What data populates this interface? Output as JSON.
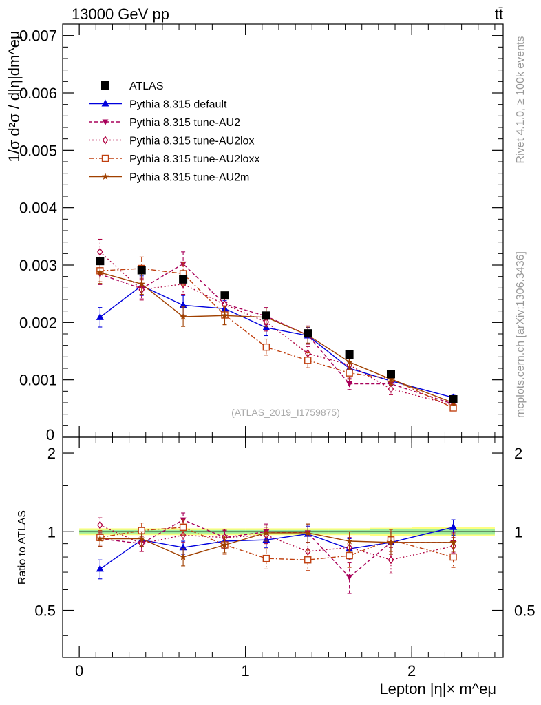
{
  "header": {
    "energy_label": "13000 GeV pp",
    "process_label": "tt̄"
  },
  "side_text": {
    "rivet_label": "Rivet 4.1.0, ≥ 100k events",
    "mcplots_label": "mcplots.cern.ch [arXiv:1306.3436]"
  },
  "analysis_label": "(ATLAS_2019_I1759875)",
  "chart_data": [
    {
      "type": "line",
      "panel": "main",
      "ylabel": "1/σ  d²σ / d|η|dm^eμ",
      "xlim": [
        -0.1,
        2.55
      ],
      "ylim": [
        0,
        0.0072
      ],
      "yticks": [
        "0.001",
        "0.002",
        "0.003",
        "0.004",
        "0.005",
        "0.006",
        "0.007"
      ],
      "ytick_values": [
        0.001,
        0.002,
        0.003,
        0.004,
        0.005,
        0.006,
        0.007
      ],
      "ytick_zero_label": "0",
      "x": [
        0.125,
        0.375,
        0.625,
        0.875,
        1.125,
        1.375,
        1.625,
        1.875,
        2.25
      ],
      "xerr": [
        0.125,
        0.125,
        0.125,
        0.125,
        0.125,
        0.125,
        0.125,
        0.125,
        0.25
      ],
      "legend_position": "top-left",
      "series": [
        {
          "name": "ATLAS",
          "color": "#000000",
          "marker": "square",
          "dash": "",
          "connect": false,
          "values": [
            0.00307,
            0.00291,
            0.00275,
            0.00247,
            0.00212,
            0.00181,
            0.00144,
            0.0011,
            0.00066
          ],
          "errors": [
            4e-05,
            4e-05,
            4e-05,
            3e-05,
            3e-05,
            3e-05,
            2e-05,
            2e-05,
            2e-05
          ]
        },
        {
          "name": "Pythia 8.315 default",
          "color": "#0000dd",
          "marker": "triangle-up",
          "dash": "",
          "connect": true,
          "values": [
            0.00209,
            0.00264,
            0.0023,
            0.00224,
            0.00191,
            0.00177,
            0.0012,
            0.00098,
            0.00069
          ],
          "errors": [
            0.00017,
            0.00017,
            0.00017,
            0.00014,
            0.00014,
            0.00014,
            0.00011,
            8e-05,
            4e-05
          ]
        },
        {
          "name": "Pythia 8.315 tune-AU2",
          "color": "#a8005a",
          "marker": "triangle-down",
          "dash": "5,3",
          "connect": true,
          "values": [
            0.00284,
            0.00259,
            0.00302,
            0.00232,
            0.00211,
            0.00178,
            0.00093,
            0.00093,
            0.00058
          ],
          "errors": [
            0.00018,
            0.00018,
            0.00021,
            0.00015,
            0.00015,
            0.00016,
            0.0001,
            0.0001,
            5e-05
          ]
        },
        {
          "name": "Pythia 8.315 tune-AU2lox",
          "color": "#b00040",
          "marker": "diamond",
          "dash": "2,3",
          "connect": true,
          "values": [
            0.00323,
            0.00257,
            0.00267,
            0.00231,
            0.00201,
            0.00146,
            0.00126,
            0.00084,
            0.00056
          ],
          "errors": [
            0.00022,
            0.00018,
            0.00018,
            0.00016,
            0.00016,
            0.00012,
            0.00012,
            0.0001,
            4e-05
          ]
        },
        {
          "name": "Pythia 8.315 tune-AU2loxx",
          "color": "#c04010",
          "marker": "square-open",
          "dash": "7,3,2,3",
          "connect": true,
          "values": [
            0.0029,
            0.00294,
            0.00285,
            0.00213,
            0.00157,
            0.00134,
            0.00112,
            0.00102,
            0.00051
          ],
          "errors": [
            0.00019,
            0.0002,
            0.0002,
            0.00016,
            0.00014,
            0.00013,
            0.00011,
            0.0001,
            4e-05
          ]
        },
        {
          "name": "Pythia 8.315 tune-AU2m",
          "color": "#a04000",
          "marker": "star",
          "dash": "",
          "connect": true,
          "values": [
            0.00287,
            0.00267,
            0.0021,
            0.00212,
            0.00209,
            0.00178,
            0.00131,
            0.00101,
            0.0006
          ],
          "errors": [
            0.00019,
            0.00018,
            0.00017,
            0.00016,
            0.00016,
            0.00014,
            0.00012,
            0.0001,
            5e-05
          ]
        }
      ]
    },
    {
      "type": "line",
      "panel": "ratio",
      "ylabel": "Ratio to ATLAS",
      "xlabel": "Lepton |η|× m^eμ",
      "xlim": [
        -0.1,
        2.55
      ],
      "ylim": [
        0.33,
        2.3
      ],
      "yticks": [
        "0.5",
        "1",
        "2"
      ],
      "ytick_values": [
        0.5,
        1,
        2
      ],
      "xticks": [
        "0",
        "1",
        "2"
      ],
      "xtick_values": [
        0,
        1,
        2
      ],
      "band_color": "#fcff80",
      "band_inner_color": "#9eed9e",
      "band_outer_halfwidth": [
        0.03,
        0.03,
        0.03,
        0.03,
        0.03,
        0.03,
        0.03,
        0.035,
        0.04
      ],
      "band_inner_halfwidth": [
        0.015,
        0.015,
        0.015,
        0.015,
        0.015,
        0.015,
        0.015,
        0.02,
        0.025
      ],
      "series": [
        {
          "name": "Pythia 8.315 default",
          "values": [
            0.72,
            0.93,
            0.87,
            0.92,
            0.93,
            0.98,
            0.86,
            0.91,
            1.04
          ],
          "errors": [
            0.06,
            0.05,
            0.05,
            0.06,
            0.06,
            0.07,
            0.08,
            0.09,
            0.07
          ]
        },
        {
          "name": "Pythia 8.315 tune-AU2",
          "values": [
            0.94,
            0.9,
            1.11,
            0.95,
            1.0,
            0.99,
            0.67,
            0.91,
            0.91
          ],
          "errors": [
            0.06,
            0.06,
            0.07,
            0.06,
            0.07,
            0.08,
            0.09,
            0.09,
            0.08
          ]
        },
        {
          "name": "Pythia 8.315 tune-AU2lox",
          "values": [
            1.06,
            0.9,
            0.97,
            0.95,
            0.97,
            0.84,
            0.87,
            0.78,
            0.88
          ],
          "errors": [
            0.07,
            0.06,
            0.06,
            0.07,
            0.07,
            0.07,
            0.08,
            0.09,
            0.07
          ]
        },
        {
          "name": "Pythia 8.315 tune-AU2loxx",
          "values": [
            0.95,
            1.01,
            1.04,
            0.89,
            0.79,
            0.78,
            0.81,
            0.93,
            0.8
          ],
          "errors": [
            0.06,
            0.07,
            0.07,
            0.07,
            0.07,
            0.07,
            0.08,
            0.09,
            0.07
          ]
        },
        {
          "name": "Pythia 8.315 tune-AU2m",
          "values": [
            0.94,
            0.94,
            0.8,
            0.89,
            0.99,
            0.99,
            0.92,
            0.91,
            0.91
          ],
          "errors": [
            0.06,
            0.06,
            0.06,
            0.06,
            0.07,
            0.08,
            0.08,
            0.09,
            0.07
          ]
        }
      ]
    }
  ]
}
